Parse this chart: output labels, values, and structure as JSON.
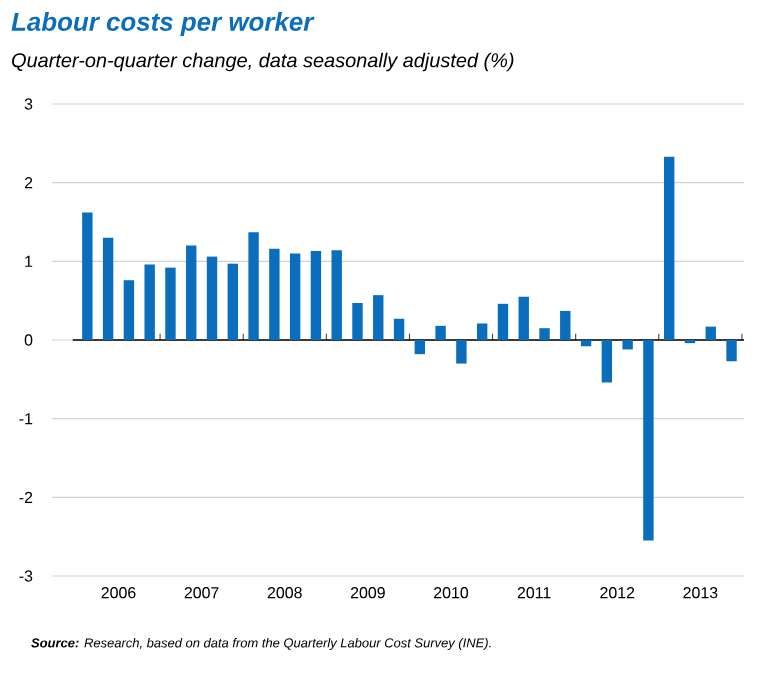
{
  "chart_data": {
    "type": "bar",
    "title": "Labour costs per worker",
    "subtitle": "Quarter-on-quarter change, data seasonally adjusted (%)",
    "categories": [
      null,
      "2006",
      null,
      null,
      null,
      "2007",
      null,
      null,
      null,
      "2008",
      null,
      null,
      null,
      "2009",
      null,
      null,
      null,
      "2010",
      null,
      null,
      null,
      "2011",
      null,
      null,
      null,
      "2012",
      null,
      null,
      null,
      "2013",
      null,
      null
    ],
    "values": [
      1.62,
      1.3,
      0.76,
      0.96,
      0.92,
      1.2,
      1.06,
      0.97,
      1.37,
      1.16,
      1.1,
      1.13,
      1.14,
      0.47,
      0.57,
      0.27,
      -0.18,
      0.18,
      -0.3,
      0.21,
      0.46,
      0.55,
      0.15,
      0.37,
      -0.08,
      -0.54,
      -0.12,
      -2.55,
      2.33,
      -0.04,
      0.17,
      -0.27
    ],
    "color": "#0a6ebd",
    "ylim": [
      -3,
      3
    ],
    "yticks": [
      -3,
      -2,
      -1,
      0,
      1,
      2,
      3
    ],
    "grid": "y",
    "annotations": [
      "**Source:** Research, based on data from the Quarterly Labour Cost Survey (INE)."
    ]
  }
}
